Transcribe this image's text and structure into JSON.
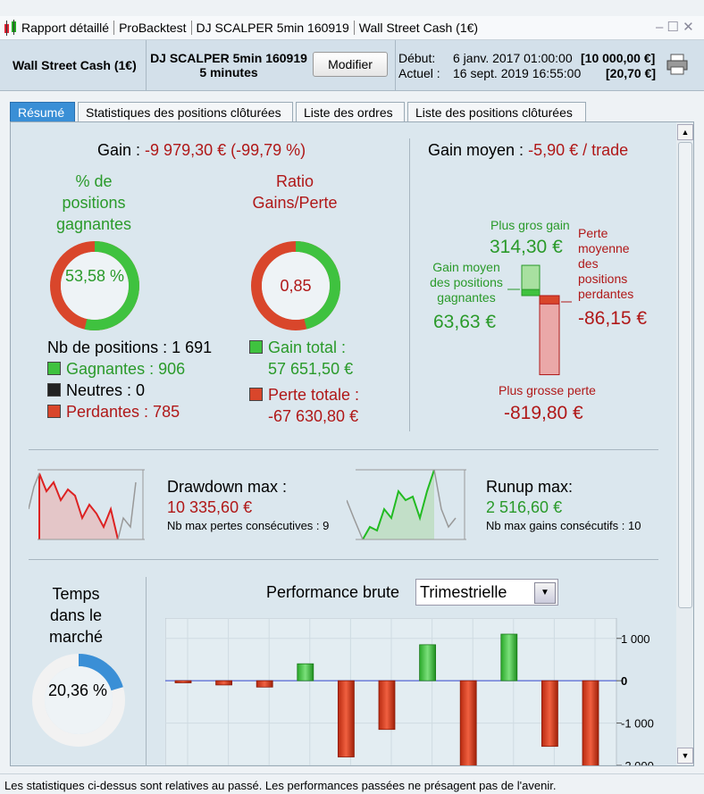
{
  "window": {
    "title_parts": [
      "Rapport détaillé",
      "ProBacktest",
      "DJ SCALPER 5min 160919",
      "Wall Street Cash (1€)"
    ]
  },
  "header": {
    "instrument": "Wall Street Cash (1€)",
    "system": "DJ SCALPER 5min 160919",
    "timeframe": "5 minutes",
    "button": "Modifier",
    "start_label": "Début:",
    "start_date": "6 janv. 2017 01:00:00",
    "start_capital": "[10 000,00 €]",
    "current_label": "Actuel :",
    "current_date": "16 sept. 2019 16:55:00",
    "current_capital": "[20,70 €]"
  },
  "tabs": [
    "Résumé",
    "Statistiques des positions clôturées",
    "Liste des ordres",
    "Liste des positions clôturées"
  ],
  "summary": {
    "gain_label": "Gain :",
    "gain_value": "-9 979,30 € (-99,79 %)",
    "winning_title": "% de positions gagnantes",
    "winning_pct": {
      "value": 53.58,
      "label": "53,58 %"
    },
    "ratio_title": "Ratio Gains/Perte",
    "ratio": {
      "value": 0.85,
      "label": "0,85"
    },
    "positions": "Nb de positions : 1 691",
    "winners": "Gagnantes : 906",
    "neutral": "Neutres : 0",
    "losers": "Perdantes : 785",
    "gain_total_label": "Gain total :",
    "gain_total": "57 651,50 €",
    "loss_total_label": "Perte totale :",
    "loss_total": "-67 630,80 €"
  },
  "average": {
    "label": "Gain moyen :",
    "value": "-5,90 € / trade",
    "max_gain_label": "Plus gros gain",
    "max_gain": {
      "value": 314.3,
      "label": "314,30 €"
    },
    "avg_gain_label": "Gain moyen des positions gagnantes",
    "avg_gain": {
      "value": 63.63,
      "label": "63,63 €"
    },
    "avg_loss_label": "Perte moyenne des positions perdantes",
    "avg_loss": {
      "value": -86.15,
      "label": "-86,15 €"
    },
    "max_loss_label": "Plus grosse perte",
    "max_loss": {
      "value": -819.8,
      "label": "-819,80 €"
    }
  },
  "drawdown": {
    "title": "Drawdown max :",
    "value": "10 335,60 €",
    "note": "Nb max pertes consécutives : 9"
  },
  "runup": {
    "title": "Runup max:",
    "value": "2 516,60 €",
    "note": "Nb max gains consécutifs : 10"
  },
  "time_in_market": {
    "title": "Temps dans le marché",
    "value": {
      "value": 20.36,
      "label": "20,36 %"
    }
  },
  "performance": {
    "title": "Performance brute",
    "period": "Trimestrielle",
    "values": [
      -50,
      -100,
      -150,
      400,
      -1800,
      -1150,
      850,
      -2200,
      1100,
      -1550,
      -2200
    ],
    "ylim": [
      -2000,
      1480
    ],
    "yticks": [
      {
        "value": 1000,
        "label": "1 000"
      },
      0,
      {
        "value": -1000,
        "label": "-1 000"
      },
      {
        "value": -2000,
        "label": "-2 000"
      }
    ]
  },
  "footer": "Les statistiques ci-dessus sont relatives au passé. Les performances passées ne présagent pas de l'avenir."
}
